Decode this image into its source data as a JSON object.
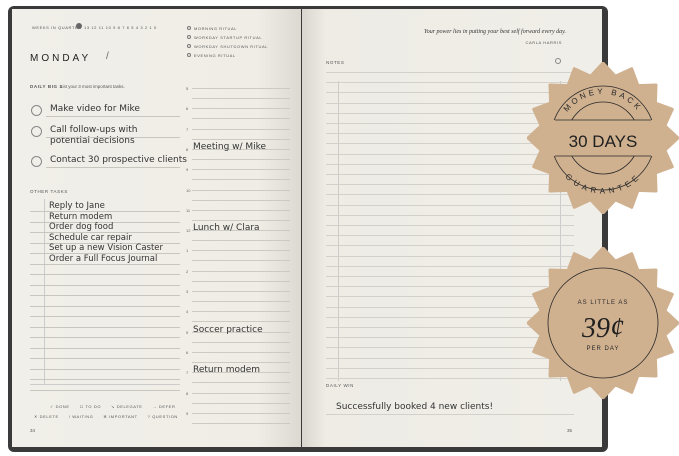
{
  "left_page": {
    "weeks_label": "Weeks in Quarter",
    "weeks_numbers": "13 12 11 10 9 8 7 6 5 4 3 2 1 0",
    "day": "MONDAY",
    "date_slash": "/",
    "rituals": [
      "Morning Ritual",
      "Workday Startup Ritual",
      "Workday Shutdown Ritual",
      "Evening Ritual"
    ],
    "big3_label": "DAILY BIG 3",
    "big3_hint": "List your 3 most important tasks.",
    "big3": [
      "Make video for Mike",
      "Call follow-ups with\npotential decisions",
      "Contact 30 prospective clients"
    ],
    "other_tasks_label": "OTHER TASKS",
    "other_tasks": [
      "Reply to Jane",
      "Return modem",
      "Order dog food",
      "Schedule car repair",
      "Set up a new Vision Caster",
      "Order a Full Focus Journal"
    ],
    "hours": [
      "5",
      "6",
      "7",
      "8",
      "9",
      "10",
      "11",
      "12",
      "1",
      "2",
      "3",
      "4",
      "5",
      "6",
      "7",
      "8",
      "9"
    ],
    "appointments": [
      {
        "hour_index": 3,
        "text": "Meeting w/ Mike"
      },
      {
        "hour_index": 7,
        "text": "Lunch w/ Clara"
      },
      {
        "hour_index": 12,
        "text": "Soccer practice"
      },
      {
        "hour_index": 14,
        "text": "Return modem"
      }
    ],
    "legend_row1": [
      "✓ DONE",
      "☐ TO DO",
      "↘ DELEGATE",
      "→ DEFER"
    ],
    "legend_row2": [
      "✕ DELETE",
      "/ WAITING",
      "✲ IMPORTANT",
      "? QUESTION"
    ],
    "page_number": "34"
  },
  "right_page": {
    "quote": "Your power lies in putting your best self forward every day.",
    "quote_author": "CARLA HARRIS",
    "notes_label": "NOTES",
    "daily_win_label": "DAILY WIN",
    "daily_win": "Successfully booked 4 new clients!",
    "page_number": "35"
  },
  "badges": {
    "guarantee_top": "MONEY BACK",
    "guarantee_main": "30 DAYS",
    "guarantee_bottom": "GUARANTEE",
    "price_top": "AS LITTLE AS",
    "price_main": "39¢",
    "price_bottom": "PER DAY",
    "color": "#cfb08f"
  }
}
